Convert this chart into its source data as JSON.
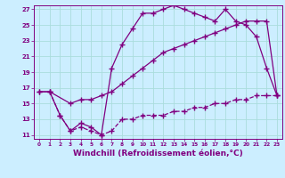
{
  "bg_color": "#cceeff",
  "line_color": "#800080",
  "grid_color": "#aadddd",
  "xlabel": "Windchill (Refroidissement éolien,°C)",
  "xlim": [
    -0.5,
    23.5
  ],
  "ylim": [
    10.5,
    27.5
  ],
  "yticks": [
    11,
    13,
    15,
    17,
    19,
    21,
    23,
    25,
    27
  ],
  "xticks": [
    0,
    1,
    2,
    3,
    4,
    5,
    6,
    7,
    8,
    9,
    10,
    11,
    12,
    13,
    14,
    15,
    16,
    17,
    18,
    19,
    20,
    21,
    22,
    23
  ],
  "series1_x": [
    0,
    1,
    2,
    3,
    4,
    5,
    6,
    7,
    8,
    9,
    10,
    11,
    12,
    13,
    14,
    15,
    16,
    17,
    18,
    19,
    20,
    21,
    22,
    23
  ],
  "series1_y": [
    16.5,
    16.5,
    13.5,
    11.5,
    12.5,
    12.0,
    11.0,
    19.5,
    22.5,
    24.5,
    26.5,
    26.5,
    27.0,
    27.5,
    27.0,
    26.5,
    26.0,
    25.5,
    27.0,
    25.5,
    25.0,
    23.5,
    19.5,
    16.0
  ],
  "series2_x": [
    0,
    1,
    3,
    4,
    5,
    6,
    7,
    8,
    9,
    10,
    11,
    12,
    13,
    14,
    15,
    16,
    17,
    18,
    19,
    20,
    21,
    22,
    23
  ],
  "series2_y": [
    16.5,
    16.5,
    15.0,
    15.5,
    15.5,
    16.0,
    16.5,
    17.5,
    18.5,
    19.5,
    20.5,
    21.5,
    22.0,
    22.5,
    23.0,
    23.5,
    24.0,
    24.5,
    25.0,
    25.5,
    25.5,
    25.5,
    16.0
  ],
  "series3_x": [
    1,
    2,
    3,
    4,
    5,
    6,
    7,
    8,
    9,
    10,
    11,
    12,
    13,
    14,
    15,
    16,
    17,
    18,
    19,
    20,
    21,
    22,
    23
  ],
  "series3_y": [
    16.5,
    13.5,
    11.5,
    12.0,
    11.5,
    11.0,
    11.5,
    13.0,
    13.0,
    13.5,
    13.5,
    13.5,
    14.0,
    14.0,
    14.5,
    14.5,
    15.0,
    15.0,
    15.5,
    15.5,
    16.0,
    16.0,
    16.0
  ],
  "marker": "+",
  "markersize": 4,
  "linewidth": 0.9,
  "tick_fontsize": 5.0,
  "xlabel_fontsize": 6.5
}
